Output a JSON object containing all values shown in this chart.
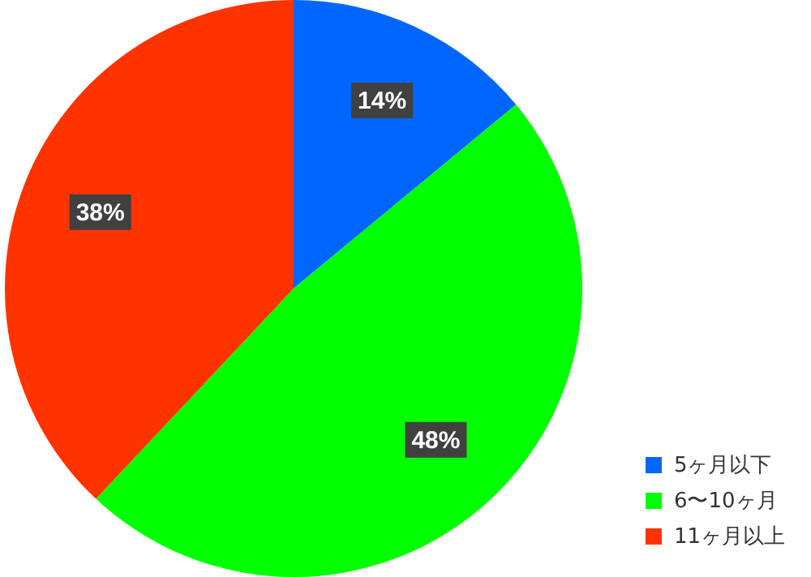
{
  "chart_data": {
    "type": "pie",
    "categories": [
      "5ヶ月以下",
      "6〜10ヶ月",
      "11ヶ月以上"
    ],
    "values": [
      14,
      48,
      38
    ],
    "colors": [
      "#0066ff",
      "#00ff00",
      "#ff3300"
    ],
    "value_labels": [
      "14%",
      "48%",
      "38%"
    ],
    "legend": "bottom right"
  }
}
